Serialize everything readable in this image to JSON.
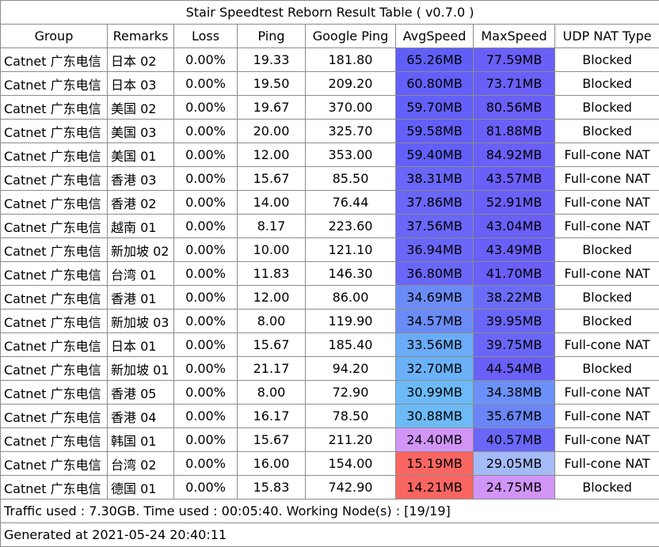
{
  "title": "Stair Speedtest Reborn Result Table ( v0.7.0 )",
  "headers": [
    "Group",
    "Remarks",
    "Loss",
    "Ping",
    "Google Ping",
    "AvgSpeed",
    "MaxSpeed",
    "UDP NAT Type"
  ],
  "rows": [
    {
      "group": "Catnet 广东电信",
      "remarks": "日本 02",
      "loss": "0.00%",
      "ping": "19.33",
      "google_ping": "181.80",
      "avg": "65.26MB",
      "max": "77.59MB",
      "nat": "Blocked",
      "avg_color": "#5f5ff7",
      "max_color": "#6a5ff7"
    },
    {
      "group": "Catnet 广东电信",
      "remarks": "日本 03",
      "loss": "0.00%",
      "ping": "19.50",
      "google_ping": "209.20",
      "avg": "60.80MB",
      "max": "73.71MB",
      "nat": "Blocked",
      "avg_color": "#6260f8",
      "max_color": "#6a5ff7"
    },
    {
      "group": "Catnet 广东电信",
      "remarks": "美国 02",
      "loss": "0.00%",
      "ping": "19.67",
      "google_ping": "370.00",
      "avg": "59.70MB",
      "max": "80.56MB",
      "nat": "Blocked",
      "avg_color": "#6260f8",
      "max_color": "#6a5ff7"
    },
    {
      "group": "Catnet 广东电信",
      "remarks": "美国 03",
      "loss": "0.00%",
      "ping": "20.00",
      "google_ping": "325.70",
      "avg": "59.58MB",
      "max": "81.88MB",
      "nat": "Blocked",
      "avg_color": "#6260f8",
      "max_color": "#6a5ff7"
    },
    {
      "group": "Catnet 广东电信",
      "remarks": "美国 01",
      "loss": "0.00%",
      "ping": "12.00",
      "google_ping": "353.00",
      "avg": "59.40MB",
      "max": "84.92MB",
      "nat": "Full-cone NAT",
      "avg_color": "#6260f8",
      "max_color": "#6a5ff7"
    },
    {
      "group": "Catnet 广东电信",
      "remarks": "香港 03",
      "loss": "0.00%",
      "ping": "15.67",
      "google_ping": "85.50",
      "avg": "38.31MB",
      "max": "43.57MB",
      "nat": "Full-cone NAT",
      "avg_color": "#6a66f7",
      "max_color": "#6a5ff7"
    },
    {
      "group": "Catnet 广东电信",
      "remarks": "香港 02",
      "loss": "0.00%",
      "ping": "14.00",
      "google_ping": "76.44",
      "avg": "37.86MB",
      "max": "52.91MB",
      "nat": "Full-cone NAT",
      "avg_color": "#6a66f7",
      "max_color": "#6a5ff7"
    },
    {
      "group": "Catnet 广东电信",
      "remarks": "越南 01",
      "loss": "0.00%",
      "ping": "8.17",
      "google_ping": "223.60",
      "avg": "37.56MB",
      "max": "43.04MB",
      "nat": "Full-cone NAT",
      "avg_color": "#6a66f7",
      "max_color": "#6a5ff7"
    },
    {
      "group": "Catnet 广东电信",
      "remarks": "新加坡 02",
      "loss": "0.00%",
      "ping": "10.00",
      "google_ping": "121.10",
      "avg": "36.94MB",
      "max": "43.49MB",
      "nat": "Blocked",
      "avg_color": "#6a66f7",
      "max_color": "#6a5ff7"
    },
    {
      "group": "Catnet 广东电信",
      "remarks": "台湾 01",
      "loss": "0.00%",
      "ping": "11.83",
      "google_ping": "146.30",
      "avg": "36.80MB",
      "max": "41.70MB",
      "nat": "Full-cone NAT",
      "avg_color": "#6a66f7",
      "max_color": "#6a5ff7"
    },
    {
      "group": "Catnet 广东电信",
      "remarks": "香港 01",
      "loss": "0.00%",
      "ping": "12.00",
      "google_ping": "86.00",
      "avg": "34.69MB",
      "max": "38.22MB",
      "nat": "Blocked",
      "avg_color": "#6b8cf7",
      "max_color": "#6a6cf7"
    },
    {
      "group": "Catnet 广东电信",
      "remarks": "新加坡 03",
      "loss": "0.00%",
      "ping": "8.00",
      "google_ping": "119.90",
      "avg": "34.57MB",
      "max": "39.95MB",
      "nat": "Blocked",
      "avg_color": "#6b8cf7",
      "max_color": "#6a66f7"
    },
    {
      "group": "Catnet 广东电信",
      "remarks": "日本 01",
      "loss": "0.00%",
      "ping": "15.67",
      "google_ping": "185.40",
      "avg": "33.56MB",
      "max": "39.75MB",
      "nat": "Full-cone NAT",
      "avg_color": "#6aacf7",
      "max_color": "#6a66f7"
    },
    {
      "group": "Catnet 广东电信",
      "remarks": "新加坡 01",
      "loss": "0.00%",
      "ping": "21.17",
      "google_ping": "94.20",
      "avg": "32.70MB",
      "max": "44.54MB",
      "nat": "Blocked",
      "avg_color": "#6ab1f7",
      "max_color": "#6a5ff7"
    },
    {
      "group": "Catnet 广东电信",
      "remarks": "香港 05",
      "loss": "0.00%",
      "ping": "8.00",
      "google_ping": "72.90",
      "avg": "30.99MB",
      "max": "34.38MB",
      "nat": "Full-cone NAT",
      "avg_color": "#6cbaf7",
      "max_color": "#6b90f7"
    },
    {
      "group": "Catnet 广东电信",
      "remarks": "香港 04",
      "loss": "0.00%",
      "ping": "16.17",
      "google_ping": "78.50",
      "avg": "30.88MB",
      "max": "35.67MB",
      "nat": "Full-cone NAT",
      "avg_color": "#6cbaf7",
      "max_color": "#6a86f7"
    },
    {
      "group": "Catnet 广东电信",
      "remarks": "韩国 01",
      "loss": "0.00%",
      "ping": "15.67",
      "google_ping": "211.20",
      "avg": "24.40MB",
      "max": "40.57MB",
      "nat": "Full-cone NAT",
      "avg_color": "#d195f7",
      "max_color": "#6a66f7"
    },
    {
      "group": "Catnet 广东电信",
      "remarks": "台湾 02",
      "loss": "0.00%",
      "ping": "16.00",
      "google_ping": "154.00",
      "avg": "15.19MB",
      "max": "29.05MB",
      "nat": "Full-cone NAT",
      "avg_color": "#fa6662",
      "max_color": "#a4bbf7"
    },
    {
      "group": "Catnet 广东电信",
      "remarks": "德国 01",
      "loss": "0.00%",
      "ping": "15.83",
      "google_ping": "742.90",
      "avg": "14.21MB",
      "max": "24.75MB",
      "nat": "Blocked",
      "avg_color": "#fa6662",
      "max_color": "#d195f7"
    }
  ],
  "footer_traffic": "Traffic used : 7.30GB. Time used : 00:05:40. Working Node(s) : [19/19]",
  "footer_generated": "Generated at 2021-05-24 20:40:11"
}
